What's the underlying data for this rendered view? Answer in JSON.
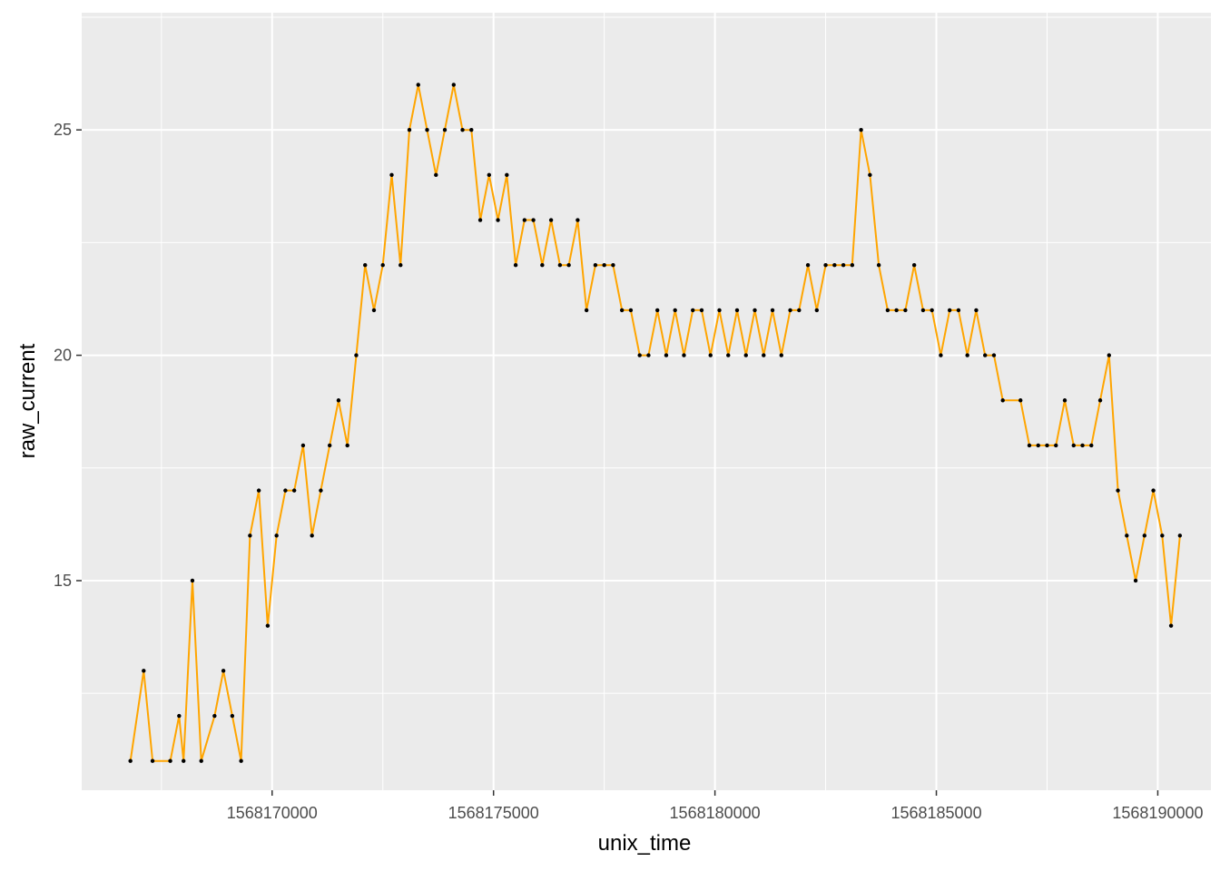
{
  "chart_data": {
    "type": "scatter",
    "title": "",
    "xlabel": "unix_time",
    "ylabel": "raw_current",
    "xlim": [
      1568165700,
      1568191200
    ],
    "ylim": [
      10.35,
      27.6
    ],
    "x_ticks": [
      1568170000,
      1568175000,
      1568180000,
      1568185000,
      1568190000
    ],
    "x_tick_labels": [
      "1568170000",
      "1568175000",
      "1568180000",
      "1568185000",
      "1568190000"
    ],
    "y_ticks": [
      15,
      20,
      25
    ],
    "y_tick_labels": [
      "15",
      "20",
      "25"
    ],
    "grid": true,
    "line_color": "#FFA500",
    "point_color": "#000000",
    "panel_color": "#EBEBEB",
    "series": [
      {
        "geom": "line+points",
        "samples": [
          [
            1568166800,
            11
          ],
          [
            1568167100,
            13
          ],
          [
            1568167300,
            11
          ],
          [
            1568167700,
            11
          ],
          [
            1568167900,
            12
          ],
          [
            1568168000,
            11
          ],
          [
            1568168200,
            15
          ],
          [
            1568168400,
            11
          ],
          [
            1568168700,
            12
          ],
          [
            1568168900,
            13
          ],
          [
            1568169100,
            12
          ],
          [
            1568169300,
            11
          ],
          [
            1568169500,
            16
          ],
          [
            1568169700,
            17
          ],
          [
            1568169900,
            14
          ],
          [
            1568170100,
            16
          ],
          [
            1568170300,
            17
          ],
          [
            1568170500,
            17
          ],
          [
            1568170700,
            18
          ],
          [
            1568170900,
            16
          ],
          [
            1568171100,
            17
          ],
          [
            1568171300,
            18
          ],
          [
            1568171500,
            19
          ],
          [
            1568171700,
            18
          ],
          [
            1568171900,
            20
          ],
          [
            1568172100,
            22
          ],
          [
            1568172300,
            21
          ],
          [
            1568172500,
            22
          ],
          [
            1568172700,
            24
          ],
          [
            1568172900,
            22
          ],
          [
            1568173100,
            25
          ],
          [
            1568173300,
            26
          ],
          [
            1568173500,
            25
          ],
          [
            1568173700,
            24
          ],
          [
            1568173900,
            25
          ],
          [
            1568174100,
            26
          ],
          [
            1568174300,
            25
          ],
          [
            1568174500,
            25
          ],
          [
            1568174700,
            23
          ],
          [
            1568174900,
            24
          ],
          [
            1568175100,
            23
          ],
          [
            1568175300,
            24
          ],
          [
            1568175500,
            22
          ],
          [
            1568175700,
            23
          ],
          [
            1568175900,
            23
          ],
          [
            1568176100,
            22
          ],
          [
            1568176300,
            23
          ],
          [
            1568176500,
            22
          ],
          [
            1568176700,
            22
          ],
          [
            1568176900,
            23
          ],
          [
            1568177100,
            21
          ],
          [
            1568177300,
            22
          ],
          [
            1568177500,
            22
          ],
          [
            1568177700,
            22
          ],
          [
            1568177900,
            21
          ],
          [
            1568178100,
            21
          ],
          [
            1568178300,
            20
          ],
          [
            1568178500,
            20
          ],
          [
            1568178700,
            21
          ],
          [
            1568178900,
            20
          ],
          [
            1568179100,
            21
          ],
          [
            1568179300,
            20
          ],
          [
            1568179500,
            21
          ],
          [
            1568179700,
            21
          ],
          [
            1568179900,
            20
          ],
          [
            1568180100,
            21
          ],
          [
            1568180300,
            20
          ],
          [
            1568180500,
            21
          ],
          [
            1568180700,
            20
          ],
          [
            1568180900,
            21
          ],
          [
            1568181100,
            20
          ],
          [
            1568181300,
            21
          ],
          [
            1568181500,
            20
          ],
          [
            1568181700,
            21
          ],
          [
            1568181900,
            21
          ],
          [
            1568182100,
            22
          ],
          [
            1568182300,
            21
          ],
          [
            1568182500,
            22
          ],
          [
            1568182700,
            22
          ],
          [
            1568182900,
            22
          ],
          [
            1568183100,
            22
          ],
          [
            1568183300,
            25
          ],
          [
            1568183500,
            24
          ],
          [
            1568183700,
            22
          ],
          [
            1568183900,
            21
          ],
          [
            1568184100,
            21
          ],
          [
            1568184300,
            21
          ],
          [
            1568184500,
            22
          ],
          [
            1568184700,
            21
          ],
          [
            1568184900,
            21
          ],
          [
            1568185100,
            20
          ],
          [
            1568185300,
            21
          ],
          [
            1568185500,
            21
          ],
          [
            1568185700,
            20
          ],
          [
            1568185900,
            21
          ],
          [
            1568186100,
            20
          ],
          [
            1568186300,
            20
          ],
          [
            1568186500,
            19
          ],
          [
            1568186900,
            19
          ],
          [
            1568187100,
            18
          ],
          [
            1568187300,
            18
          ],
          [
            1568187500,
            18
          ],
          [
            1568187700,
            18
          ],
          [
            1568187900,
            19
          ],
          [
            1568188100,
            18
          ],
          [
            1568188300,
            18
          ],
          [
            1568188500,
            18
          ],
          [
            1568188700,
            19
          ],
          [
            1568188900,
            20
          ],
          [
            1568189100,
            17
          ],
          [
            1568189300,
            16
          ],
          [
            1568189500,
            15
          ],
          [
            1568189700,
            16
          ],
          [
            1568189900,
            17
          ],
          [
            1568190100,
            16
          ],
          [
            1568190300,
            14
          ],
          [
            1568190500,
            16
          ]
        ]
      }
    ]
  }
}
